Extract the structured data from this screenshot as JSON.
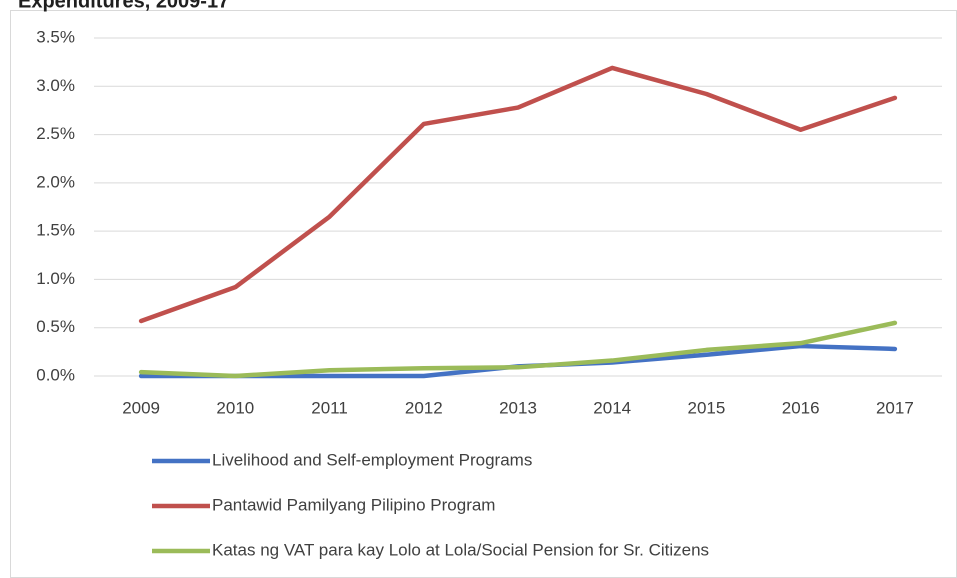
{
  "chart_data": {
    "type": "line",
    "title": "Expenditures, 2009-17",
    "categories": [
      "2009",
      "2010",
      "2011",
      "2012",
      "2013",
      "2014",
      "2015",
      "2016",
      "2017"
    ],
    "series": [
      {
        "name": "Livelihood and Self-employment Programs",
        "color": "#4472c4",
        "values": [
          0.0,
          0.0,
          0.0,
          0.0,
          0.1,
          0.14,
          0.22,
          0.31,
          0.28
        ]
      },
      {
        "name": "Pantawid Pamilyang Pilipino Program",
        "color": "#c0504d",
        "values": [
          0.57,
          0.92,
          1.65,
          2.61,
          2.78,
          3.19,
          2.92,
          2.55,
          2.88
        ]
      },
      {
        "name": "Katas ng VAT para kay Lolo at Lola/Social Pension for Sr. Citizens",
        "color": "#9bbb59",
        "values": [
          0.04,
          0.0,
          0.06,
          0.08,
          0.09,
          0.16,
          0.27,
          0.34,
          0.55
        ]
      }
    ],
    "ylim": [
      0,
      3.5
    ],
    "yticks": [
      {
        "value": 0,
        "label": "0.0%"
      },
      {
        "value": 0.5,
        "label": "0.5%"
      },
      {
        "value": 1,
        "label": "1.0%"
      },
      {
        "value": 1.5,
        "label": "1.5%"
      },
      {
        "value": 2,
        "label": "2.0%"
      },
      {
        "value": 2.5,
        "label": "2.5%"
      },
      {
        "value": 3,
        "label": "3.0%"
      },
      {
        "value": 3.5,
        "label": "3.5%"
      }
    ],
    "grid": true,
    "legend": "bottom"
  }
}
